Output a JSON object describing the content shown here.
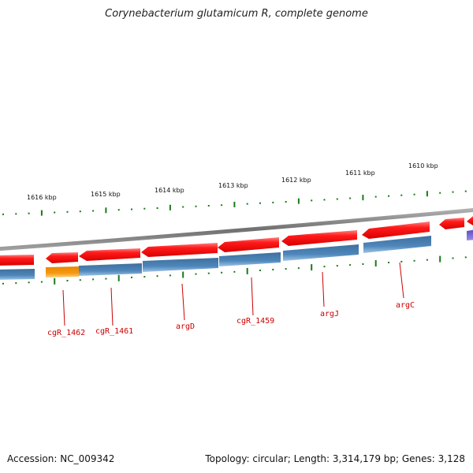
{
  "title": "Corynebacterium glutamicum R, complete genome",
  "footer": {
    "accession": "Accession: NC_009342",
    "summary": "Topology: circular; Length: 3,314,179 bp; Genes: 3,128"
  },
  "scale_labels": [
    "1616 kbp",
    "1615 kbp",
    "1614 kbp",
    "1613 kbp",
    "1612 kbp",
    "1611 kbp",
    "1610 kbp"
  ],
  "gene_labels": [
    "cgR_1462",
    "cgR_1461",
    "argD",
    "cgR_1459",
    "argJ",
    "argC"
  ],
  "colors": {
    "forward_gene": "#ee1111",
    "reverse_gene": "#4a7fb0",
    "highlight_gene": "#f0900a",
    "other_gene": "#6a5acd",
    "backbone": "#808080",
    "ticks": "#1a7a1a",
    "label": "#cc0000"
  }
}
